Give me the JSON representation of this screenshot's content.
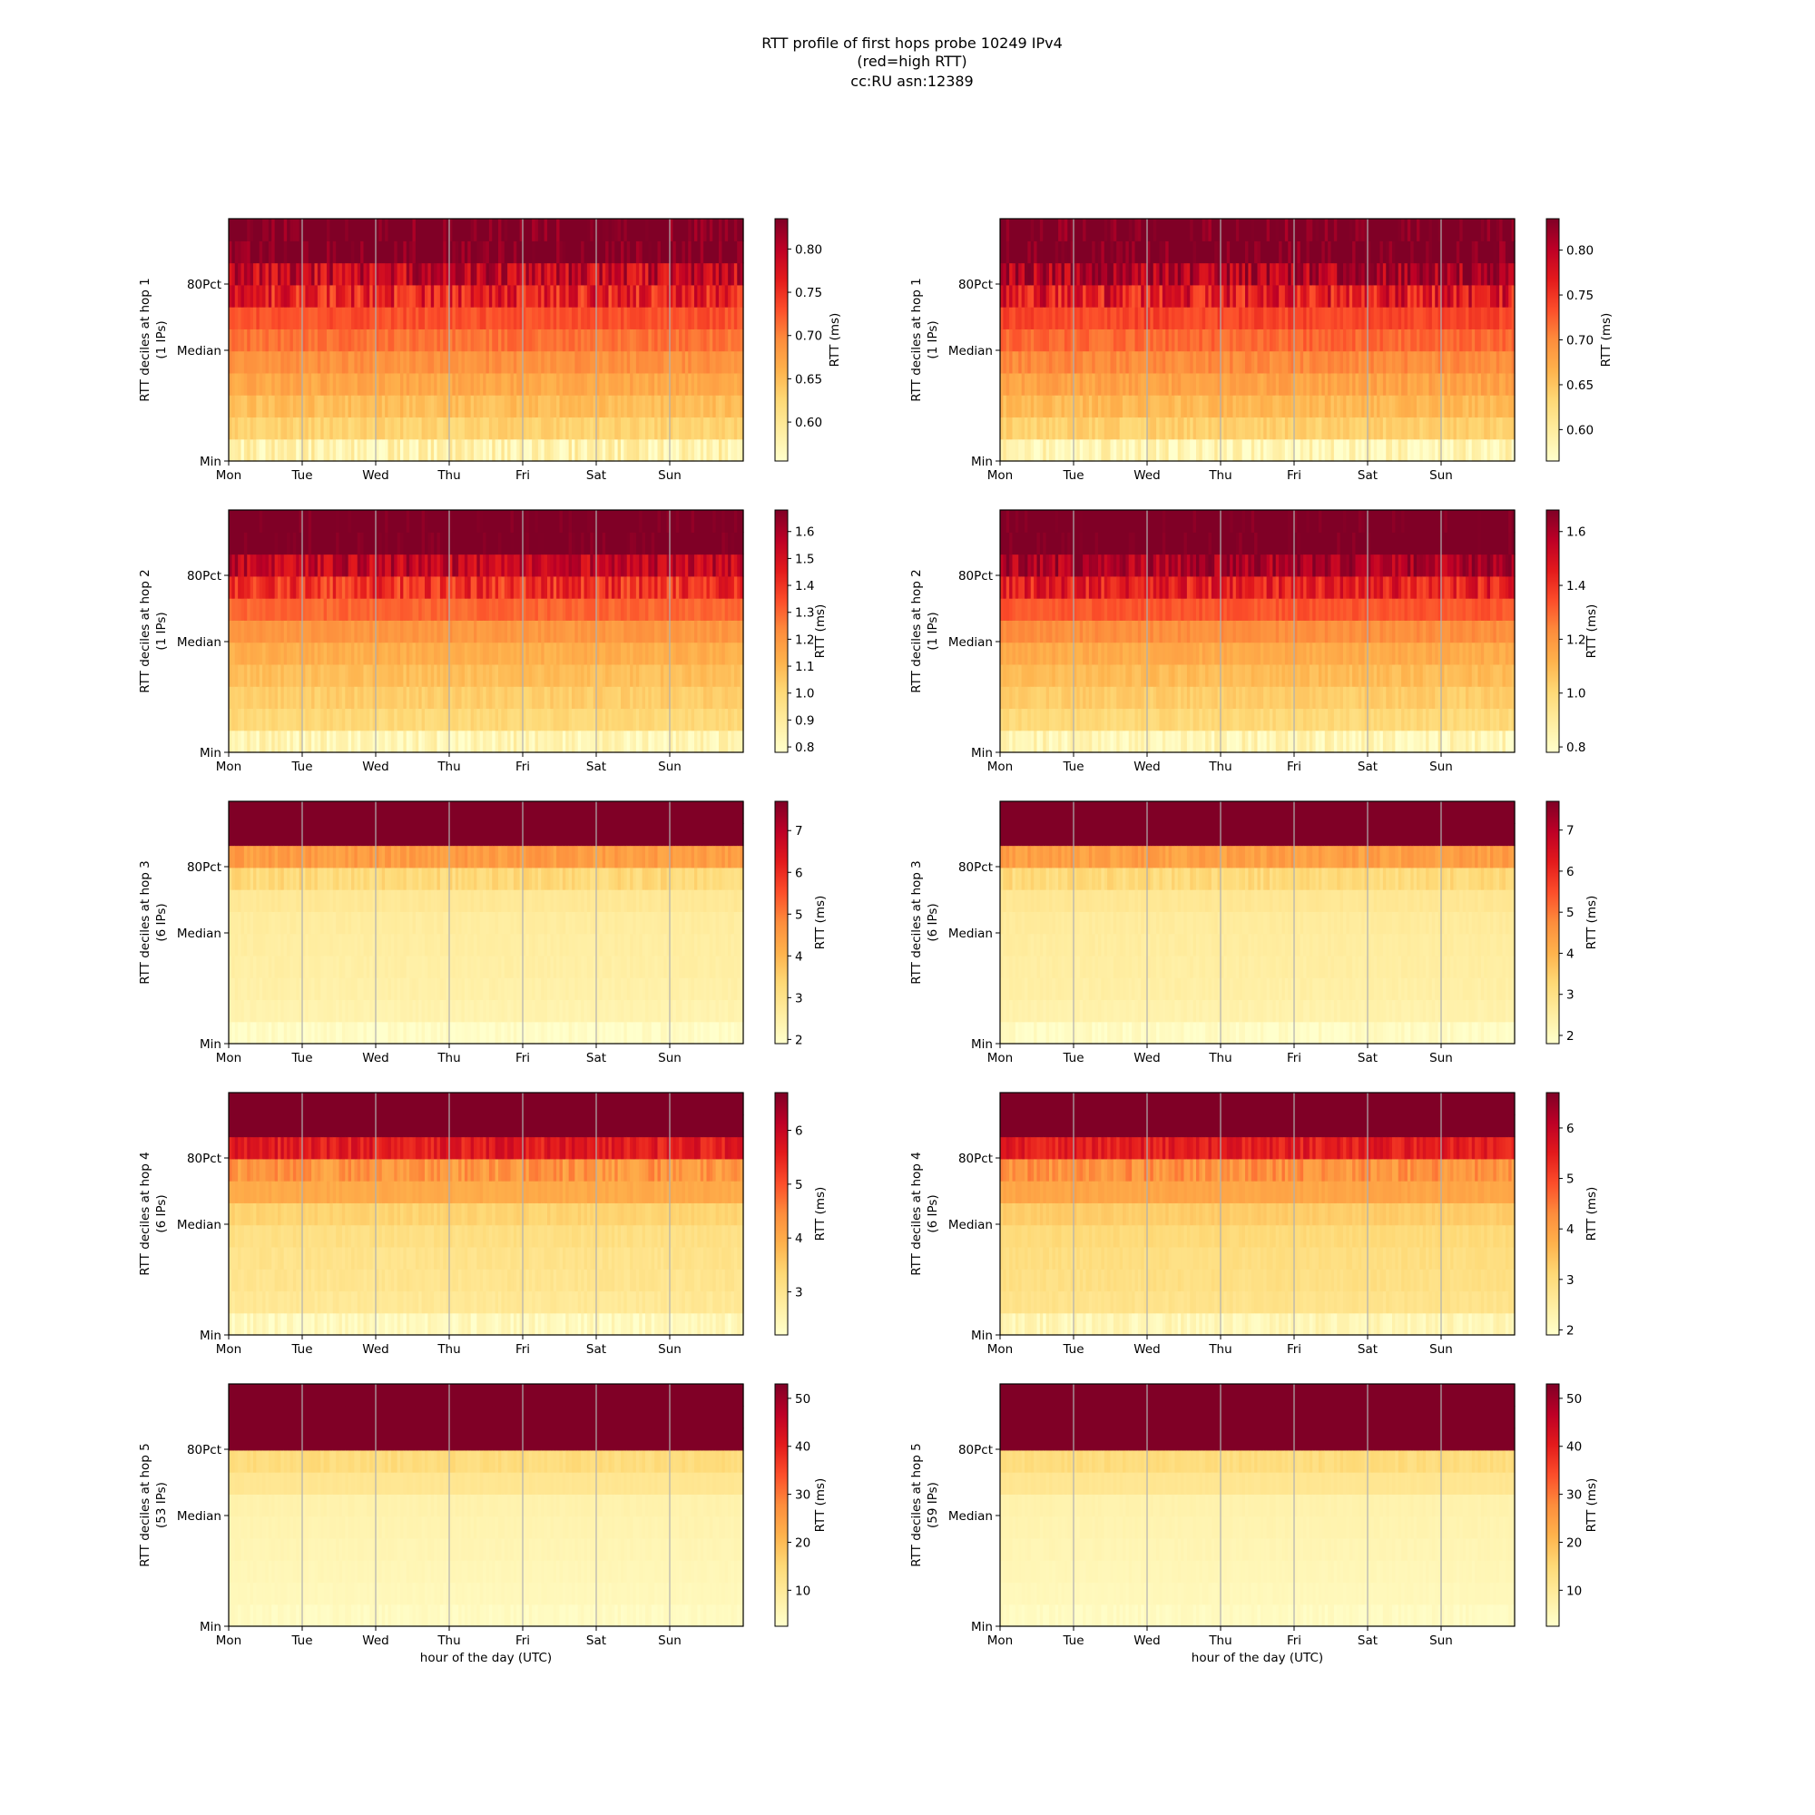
{
  "title": {
    "lines": [
      "RTT profile of first hops probe 10249 IPv4",
      "(red=high RTT)",
      "cc:RU asn:12389"
    ]
  },
  "common": {
    "xticks": [
      "Mon",
      "Tue",
      "Wed",
      "Thu",
      "Fri",
      "Sat",
      "Sun"
    ],
    "yticks": [
      "80Pct",
      "Median",
      "Min"
    ],
    "xlabel": "hour of the day (UTC)",
    "colorbar_label": "RTT (ms)",
    "colormap": [
      "#ffffcc",
      "#ffeda0",
      "#fed976",
      "#feb24c",
      "#fd8d3c",
      "#fc4e2a",
      "#e31a1c",
      "#bd0026",
      "#800026"
    ]
  },
  "chart_data": [
    {
      "type": "heatmap",
      "row": 1,
      "col": 1,
      "ylabel_line1": "RTT deciles at hop 1",
      "ylabel_line2": "(1 IPs)",
      "cbar_ticks": [
        "0.60",
        "0.65",
        "0.70",
        "0.75",
        "0.80"
      ],
      "cbar_values": [
        0.6,
        0.65,
        0.7,
        0.75,
        0.8
      ],
      "vmin": 0.555,
      "vmax": 0.835,
      "decile_values": [
        0.58,
        0.63,
        0.65,
        0.67,
        0.69,
        0.71,
        0.73,
        0.76,
        0.79,
        0.85
      ],
      "noise": 0.012,
      "cell_columns": 168
    },
    {
      "type": "heatmap",
      "row": 1,
      "col": 2,
      "ylabel_line1": "RTT deciles at hop 1",
      "ylabel_line2": "(1 IPs)",
      "cbar_ticks": [
        "0.60",
        "0.65",
        "0.70",
        "0.75",
        "0.80"
      ],
      "cbar_values": [
        0.6,
        0.65,
        0.7,
        0.75,
        0.8
      ],
      "vmin": 0.565,
      "vmax": 0.835,
      "decile_values": [
        0.58,
        0.64,
        0.66,
        0.68,
        0.7,
        0.72,
        0.74,
        0.77,
        0.81,
        0.85
      ],
      "noise": 0.012,
      "cell_columns": 168
    },
    {
      "type": "heatmap",
      "row": 2,
      "col": 1,
      "ylabel_line1": "RTT deciles at hop 2",
      "ylabel_line2": "(1 IPs)",
      "cbar_ticks": [
        "0.8",
        "0.9",
        "1.0",
        "1.1",
        "1.2",
        "1.3",
        "1.4",
        "1.5",
        "1.6"
      ],
      "cbar_values": [
        0.8,
        0.9,
        1.0,
        1.1,
        1.2,
        1.3,
        1.4,
        1.5,
        1.6
      ],
      "vmin": 0.78,
      "vmax": 1.68,
      "decile_values": [
        0.84,
        1.0,
        1.04,
        1.08,
        1.13,
        1.2,
        1.3,
        1.4,
        1.55,
        1.75
      ],
      "noise": 0.03,
      "cell_columns": 168
    },
    {
      "type": "heatmap",
      "row": 2,
      "col": 2,
      "ylabel_line1": "RTT deciles at hop 2",
      "ylabel_line2": "(1 IPs)",
      "cbar_ticks": [
        "0.8",
        "1.0",
        "1.2",
        "1.4",
        "1.6"
      ],
      "cbar_values": [
        0.8,
        1.0,
        1.2,
        1.4,
        1.6
      ],
      "vmin": 0.78,
      "vmax": 1.68,
      "decile_values": [
        0.84,
        1.0,
        1.04,
        1.09,
        1.14,
        1.22,
        1.33,
        1.45,
        1.6,
        1.75
      ],
      "noise": 0.03,
      "cell_columns": 168
    },
    {
      "type": "heatmap",
      "row": 3,
      "col": 1,
      "ylabel_line1": "RTT deciles at hop 3",
      "ylabel_line2": "(6 IPs)",
      "cbar_ticks": [
        "2",
        "3",
        "4",
        "5",
        "6",
        "7"
      ],
      "cbar_values": [
        2,
        3,
        4,
        5,
        6,
        7
      ],
      "vmin": 1.9,
      "vmax": 7.7,
      "decile_values": [
        2.0,
        2.4,
        2.5,
        2.55,
        2.6,
        2.65,
        2.8,
        3.3,
        4.5,
        9.0
      ],
      "noise": 0.08,
      "cell_columns": 168
    },
    {
      "type": "heatmap",
      "row": 3,
      "col": 2,
      "ylabel_line1": "RTT deciles at hop 3",
      "ylabel_line2": "(6 IPs)",
      "cbar_ticks": [
        "2",
        "3",
        "4",
        "5",
        "6",
        "7"
      ],
      "cbar_values": [
        2,
        3,
        4,
        5,
        6,
        7
      ],
      "vmin": 1.8,
      "vmax": 7.7,
      "decile_values": [
        1.95,
        2.35,
        2.45,
        2.5,
        2.55,
        2.6,
        2.75,
        3.2,
        4.4,
        9.0
      ],
      "noise": 0.08,
      "cell_columns": 168
    },
    {
      "type": "heatmap",
      "row": 4,
      "col": 1,
      "ylabel_line1": "RTT deciles at hop 4",
      "ylabel_line2": "(6 IPs)",
      "cbar_ticks": [
        "3",
        "4",
        "5",
        "6"
      ],
      "cbar_values": [
        3,
        4,
        5,
        6
      ],
      "vmin": 2.2,
      "vmax": 6.7,
      "decile_values": [
        2.4,
        2.9,
        3.0,
        3.05,
        3.15,
        3.4,
        4.0,
        4.3,
        5.6,
        8.0
      ],
      "noise": 0.1,
      "cell_columns": 168
    },
    {
      "type": "heatmap",
      "row": 4,
      "col": 2,
      "ylabel_line1": "RTT deciles at hop 4",
      "ylabel_line2": "(6 IPs)",
      "cbar_ticks": [
        "2",
        "3",
        "4",
        "5",
        "6"
      ],
      "cbar_values": [
        2,
        3,
        4,
        5,
        6
      ],
      "vmin": 1.9,
      "vmax": 6.7,
      "decile_values": [
        2.2,
        2.8,
        2.9,
        2.95,
        3.05,
        3.3,
        3.9,
        4.2,
        5.5,
        8.0
      ],
      "noise": 0.1,
      "cell_columns": 168
    },
    {
      "type": "heatmap",
      "row": 5,
      "col": 1,
      "ylabel_line1": "RTT deciles at hop 5",
      "ylabel_line2": "(53 IPs)",
      "cbar_ticks": [
        "10",
        "20",
        "30",
        "40",
        "50"
      ],
      "cbar_values": [
        10,
        20,
        30,
        40,
        50
      ],
      "vmin": 2.5,
      "vmax": 53,
      "decile_values": [
        4,
        5,
        5.5,
        6,
        6.5,
        7,
        11,
        14,
        60,
        80
      ],
      "noise": 0.4,
      "cell_columns": 168
    },
    {
      "type": "heatmap",
      "row": 5,
      "col": 2,
      "ylabel_line1": "RTT deciles at hop 5",
      "ylabel_line2": "(59 IPs)",
      "cbar_ticks": [
        "10",
        "20",
        "30",
        "40",
        "50"
      ],
      "cbar_values": [
        10,
        20,
        30,
        40,
        50
      ],
      "vmin": 2.5,
      "vmax": 53,
      "decile_values": [
        4,
        5,
        5.5,
        6,
        6.5,
        7,
        11,
        14,
        60,
        80
      ],
      "noise": 0.4,
      "cell_columns": 168
    }
  ]
}
